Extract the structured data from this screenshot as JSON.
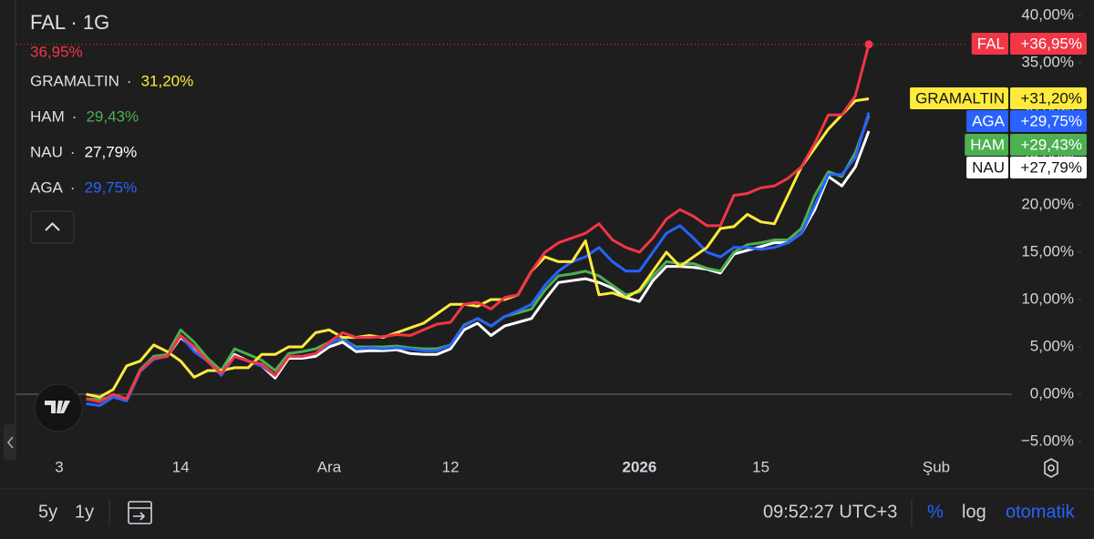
{
  "chart_data": {
    "type": "line",
    "title": "FAL · 1G",
    "headline_value": "36,95%",
    "legend_separator": "·",
    "categories": [
      "3",
      null,
      null,
      null,
      null,
      null,
      null,
      null,
      null,
      "14",
      null,
      null,
      null,
      null,
      null,
      null,
      null,
      null,
      null,
      null,
      "Ara",
      null,
      null,
      null,
      null,
      null,
      null,
      null,
      null,
      "12",
      null,
      null,
      null,
      null,
      null,
      null,
      null,
      null,
      null,
      null,
      null,
      null,
      null,
      "2026",
      null,
      null,
      null,
      null,
      null,
      null,
      null,
      null,
      "15",
      null,
      null,
      null,
      null,
      null,
      null,
      null,
      null,
      null,
      null,
      null,
      null,
      "Şub"
    ],
    "ylim": [
      -6,
      41
    ],
    "yticks": [
      {
        "value": 40,
        "label": "40,00%"
      },
      {
        "value": 35,
        "label": "35,00%"
      },
      {
        "value": 30,
        "label": "30,00%"
      },
      {
        "value": 25,
        "label": "25,00%"
      },
      {
        "value": 20,
        "label": "20,00%"
      },
      {
        "value": 15,
        "label": "15,00%"
      },
      {
        "value": 10,
        "label": "10,00%"
      },
      {
        "value": 5,
        "label": "5,00%"
      },
      {
        "value": 0,
        "label": "0,00%"
      },
      {
        "value": -5,
        "label": "−5.00%"
      }
    ],
    "series": [
      {
        "name": "FAL",
        "color": "#f23645",
        "legend_value": "36,95%",
        "tag_value": "+36,95%",
        "values": [
          null,
          null,
          -0.5,
          -0.8,
          0,
          -0.5,
          2.5,
          3.8,
          4,
          6.2,
          5,
          3.5,
          2.2,
          4,
          3.5,
          3.2,
          2,
          4,
          4,
          4.3,
          5.5,
          6.5,
          6,
          6,
          6.1,
          6.3,
          6.2,
          6.8,
          7.4,
          7.6,
          9.5,
          9.7,
          9,
          10.2,
          10.5,
          13,
          15,
          16,
          16.5,
          17,
          18,
          16.3,
          15.5,
          15,
          16.5,
          18.5,
          19.5,
          18.8,
          17.8,
          17.8,
          21,
          21.2,
          21.8,
          22,
          22.8,
          24,
          26.5,
          29.5,
          29.5,
          31.5,
          36.95,
          null,
          null,
          null,
          null,
          null
        ]
      },
      {
        "name": "GRAMALTIN",
        "color": "#ffeb3b",
        "legend_value": "31,20%",
        "tag_value": "+31,20%",
        "values": [
          null,
          null,
          0,
          -0.3,
          0.5,
          3,
          3.5,
          5.2,
          4.5,
          3.5,
          1.8,
          2.5,
          2.5,
          2.8,
          2.8,
          4.2,
          4.2,
          5,
          5,
          6.5,
          6.8,
          6,
          6,
          6.2,
          6,
          6.5,
          7,
          7.5,
          8.5,
          9.5,
          9.5,
          9.3,
          10,
          10,
          10.5,
          13,
          14.5,
          14,
          14,
          16.2,
          10.5,
          10.7,
          10.2,
          11,
          13,
          15,
          13.5,
          14.5,
          15.5,
          17.5,
          17.7,
          19,
          18.2,
          18,
          21,
          24,
          26,
          28,
          29.5,
          31,
          31.2,
          null,
          null,
          null,
          null,
          null
        ]
      },
      {
        "name": "HAM",
        "color": "#4caf50",
        "legend_value": "29,43%",
        "tag_value": "+29,43%",
        "values": [
          null,
          null,
          -0.5,
          -0.6,
          -0.2,
          -0.5,
          2.6,
          4,
          4.2,
          6.8,
          5.5,
          3.8,
          2.5,
          4.8,
          4.2,
          3.6,
          2.5,
          4.3,
          4.5,
          4.8,
          5.5,
          5.8,
          5,
          5,
          5,
          5.1,
          4.9,
          4.8,
          4.8,
          5.2,
          7.3,
          8,
          7.2,
          8.2,
          8.6,
          9,
          11,
          12.5,
          12.7,
          13,
          12.5,
          11.5,
          10.5,
          10.8,
          12.5,
          14,
          13.8,
          13.8,
          13.3,
          13,
          15,
          15.8,
          16,
          16.3,
          16.3,
          17.5,
          21,
          23.5,
          23,
          25.5,
          29.43,
          null,
          null,
          null,
          null,
          null
        ]
      },
      {
        "name": "NAU",
        "color": "#ffffff",
        "legend_value": "27,79%",
        "tag_value": "+27,79%",
        "values": [
          null,
          null,
          -0.5,
          -0.6,
          -0.2,
          -0.5,
          2.5,
          3.8,
          4,
          6,
          4.8,
          3.5,
          2.2,
          4.2,
          3.5,
          3,
          1.7,
          3.8,
          3.8,
          4,
          5,
          5.5,
          4.5,
          4.6,
          4.6,
          4.7,
          4.3,
          4.2,
          4.2,
          4.8,
          6.8,
          7.5,
          6.2,
          7.2,
          7.6,
          8,
          10,
          11.8,
          12,
          12.2,
          11.8,
          11.2,
          10.2,
          9.8,
          12,
          13.5,
          13.5,
          13.4,
          13.2,
          12.8,
          14.8,
          15.2,
          15.6,
          16,
          16,
          17,
          19.5,
          23,
          22,
          24,
          27.79,
          null,
          null,
          null,
          null,
          null
        ]
      },
      {
        "name": "AGA",
        "color": "#2962ff",
        "legend_value": "29,75%",
        "tag_value": "+29,75%",
        "values": [
          null,
          null,
          -1,
          -1.2,
          -0.3,
          -0.7,
          2.4,
          3.7,
          4,
          6.2,
          4.5,
          3.5,
          2,
          4,
          3.5,
          3,
          2,
          4,
          4,
          4.3,
          5.3,
          6,
          4.8,
          4.9,
          4.8,
          4.9,
          4.8,
          4.6,
          4.6,
          5.2,
          7.2,
          8,
          7.2,
          8.2,
          8.8,
          9.5,
          11.5,
          13,
          14,
          14.5,
          15.5,
          14,
          13,
          13,
          15,
          17,
          17.8,
          16.5,
          15,
          14.5,
          15.5,
          15.5,
          15.3,
          15.5,
          16,
          17,
          20,
          23.2,
          23.2,
          25,
          29.75,
          null,
          null,
          null,
          null,
          null
        ]
      }
    ]
  },
  "toolbar": {
    "ranges": [
      "5y",
      "1y"
    ],
    "clock": "09:52:27 UTC+3",
    "percent": "%",
    "log": "log",
    "auto": "otomatik"
  }
}
